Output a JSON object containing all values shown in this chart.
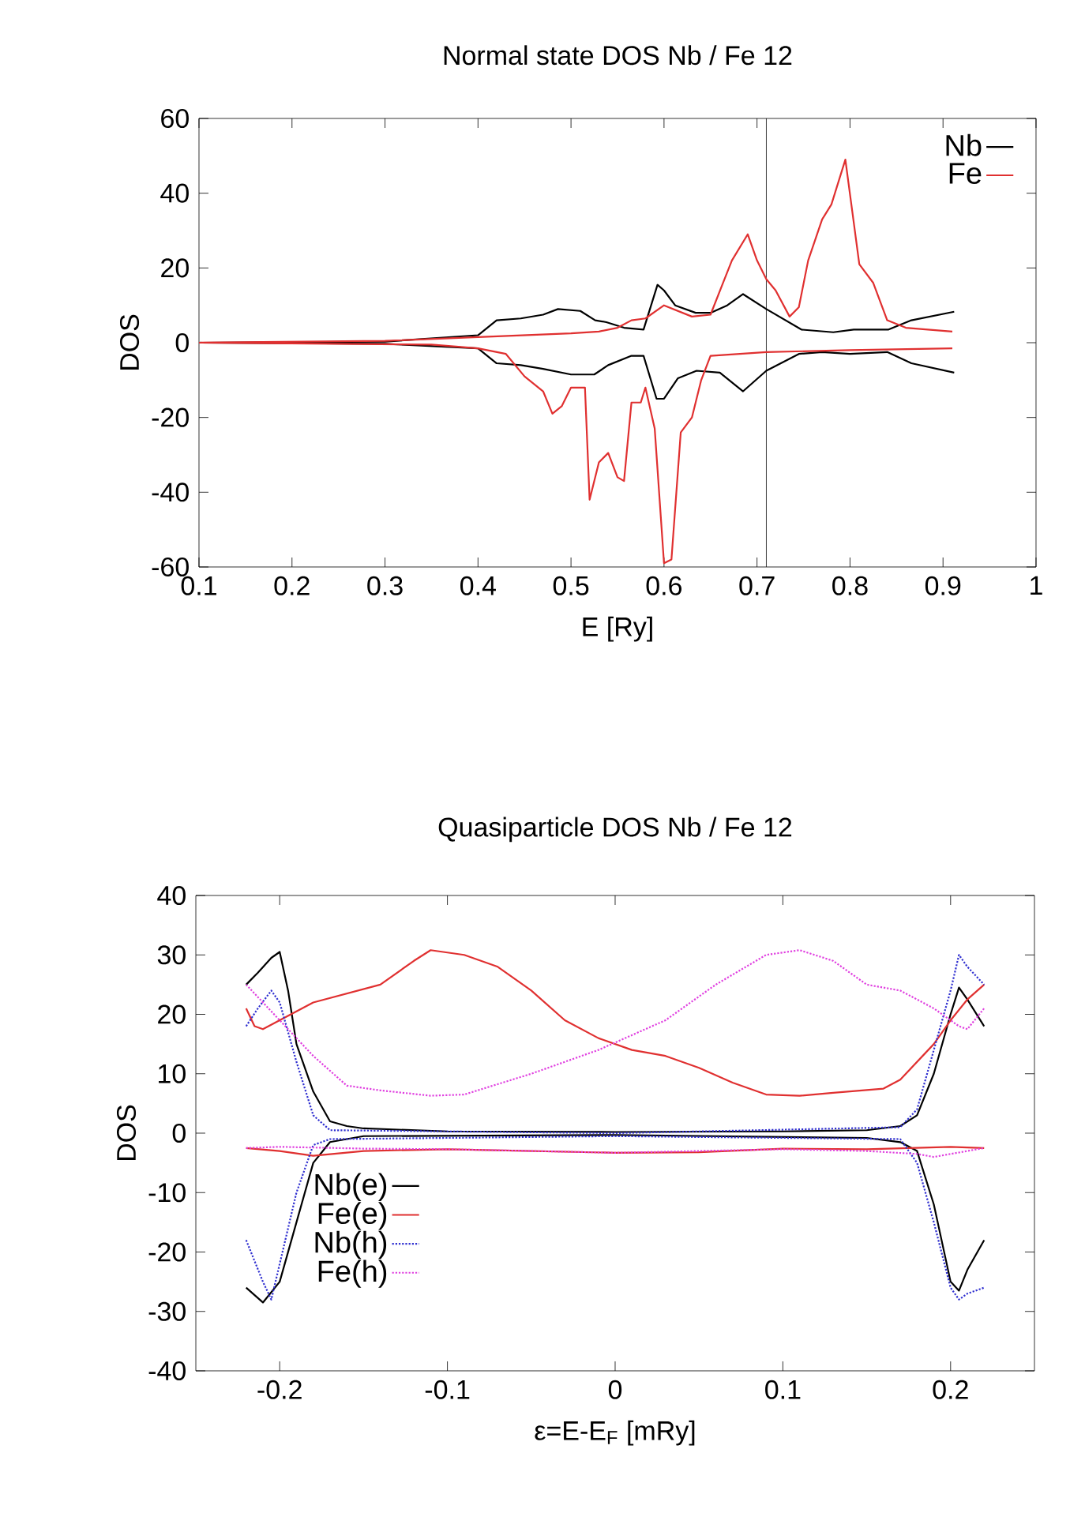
{
  "chart_data": [
    {
      "type": "line",
      "title": "Normal state DOS Nb / Fe 12",
      "xlabel": "E [Ry]",
      "ylabel": "DOS",
      "xlim": [
        0.1,
        1
      ],
      "ylim": [
        -60,
        60
      ],
      "xticks": [
        0.1,
        0.2,
        0.3,
        0.4,
        0.5,
        0.6,
        0.7,
        0.8,
        0.9,
        1
      ],
      "yticks": [
        -60,
        -40,
        -20,
        0,
        20,
        40,
        60
      ],
      "legend": "top right",
      "line_style": "solid",
      "ref_lines": [
        {
          "axis": "x",
          "value": 0.71,
          "color": "#000000"
        }
      ],
      "series": [
        {
          "name": "Nb",
          "color": "#000000",
          "x": [
            0.1,
            0.3,
            0.4,
            0.42,
            0.446,
            0.47,
            0.486,
            0.51,
            0.526,
            0.538,
            0.557,
            0.578,
            0.593,
            0.6,
            0.612,
            0.634,
            0.65,
            0.668,
            0.685,
            0.71,
            0.748,
            0.782,
            0.804,
            0.841,
            0.866,
            0.912
          ],
          "values": [
            0,
            0.3,
            2,
            6,
            6.5,
            7.5,
            9,
            8.5,
            6,
            5.5,
            4,
            3.5,
            15.5,
            14,
            10,
            8,
            8,
            10,
            13,
            9,
            3.5,
            2.8,
            3.5,
            3.5,
            6,
            8.3
          ]
        },
        {
          "color": "#000000",
          "x": [
            0.1,
            0.3,
            0.4,
            0.42,
            0.446,
            0.47,
            0.5,
            0.525,
            0.54,
            0.565,
            0.578,
            0.592,
            0.6,
            0.615,
            0.635,
            0.66,
            0.685,
            0.71,
            0.745,
            0.77,
            0.8,
            0.84,
            0.866,
            0.912
          ],
          "values": [
            0,
            -0.3,
            -1.5,
            -5.5,
            -6,
            -7,
            -8.5,
            -8.5,
            -6,
            -3.5,
            -3.5,
            -15,
            -15,
            -9.5,
            -7.5,
            -8,
            -13,
            -7.5,
            -3,
            -2.5,
            -3,
            -2.5,
            -5.5,
            -8
          ]
        },
        {
          "name": "Fe",
          "color": "#e03030",
          "x": [
            0.1,
            0.3,
            0.4,
            0.5,
            0.53,
            0.55,
            0.565,
            0.58,
            0.6,
            0.63,
            0.65,
            0.665,
            0.673,
            0.69,
            0.7,
            0.71,
            0.72,
            0.735,
            0.745,
            0.755,
            0.77,
            0.78,
            0.795,
            0.81,
            0.825,
            0.84,
            0.86,
            0.91
          ],
          "values": [
            0,
            0.5,
            1.5,
            2.5,
            3,
            4,
            6,
            6.5,
            10,
            7,
            7.5,
            17,
            22,
            29,
            22,
            17,
            14,
            7,
            9.5,
            22,
            33,
            37,
            49,
            21,
            16,
            6,
            4,
            3
          ]
        },
        {
          "color": "#e03030",
          "x": [
            0.1,
            0.35,
            0.4,
            0.43,
            0.45,
            0.47,
            0.48,
            0.49,
            0.5,
            0.515,
            0.52,
            0.53,
            0.54,
            0.55,
            0.557,
            0.565,
            0.575,
            0.58,
            0.59,
            0.6,
            0.608,
            0.618,
            0.63,
            0.64,
            0.65,
            0.71,
            0.8,
            0.91
          ],
          "values": [
            0,
            -0.5,
            -1.5,
            -3,
            -9,
            -13,
            -19,
            -17,
            -12,
            -12,
            -42,
            -32,
            -29.5,
            -36,
            -37,
            -16,
            -16,
            -12,
            -23,
            -59,
            -58,
            -24,
            -20,
            -10,
            -3.5,
            -2.5,
            -2,
            -1.5
          ]
        }
      ]
    },
    {
      "type": "line",
      "title": "Quasiparticle DOS Nb / Fe 12",
      "xlabel": "ε=E-E$_{F}$ [mRy]",
      "ylabel": "DOS",
      "xlim": [
        -0.25,
        0.25
      ],
      "ylim": [
        -40,
        40
      ],
      "xticks": [
        -0.2,
        -0.1,
        0,
        0.1,
        0.2
      ],
      "yticks": [
        -40,
        -30,
        -20,
        -10,
        0,
        10,
        20,
        30,
        40
      ],
      "legend": "bottom left",
      "series": [
        {
          "name": "Nb(e)",
          "color": "#000000",
          "line_style": "solid",
          "x": [
            -0.22,
            -0.213,
            -0.205,
            -0.2,
            -0.195,
            -0.19,
            -0.18,
            -0.17,
            -0.16,
            -0.15,
            -0.1,
            0,
            0.1,
            0.15,
            0.17,
            0.18,
            0.19,
            0.2,
            0.205,
            0.21,
            0.22
          ],
          "values": [
            25,
            27,
            29.5,
            30.5,
            24,
            15,
            7,
            2,
            1.2,
            0.8,
            0.3,
            0.2,
            0.3,
            0.5,
            1.2,
            3,
            10,
            20,
            24.5,
            22.5,
            18
          ]
        },
        {
          "color": "#000000",
          "line_style": "solid",
          "x": [
            -0.22,
            -0.21,
            -0.2,
            -0.19,
            -0.18,
            -0.17,
            -0.15,
            0,
            0.15,
            0.17,
            0.18,
            0.19,
            0.2,
            0.205,
            0.21,
            0.22
          ],
          "values": [
            -26,
            -28.5,
            -25,
            -15,
            -5,
            -1.5,
            -0.5,
            -0.3,
            -0.8,
            -1.5,
            -3,
            -12,
            -25,
            -26.5,
            -23,
            -18
          ]
        },
        {
          "name": "Fe(e)",
          "color": "#e03030",
          "line_style": "solid",
          "x": [
            -0.22,
            -0.215,
            -0.21,
            -0.2,
            -0.18,
            -0.16,
            -0.14,
            -0.12,
            -0.11,
            -0.09,
            -0.07,
            -0.05,
            -0.03,
            -0.01,
            0.01,
            0.03,
            0.05,
            0.07,
            0.09,
            0.11,
            0.13,
            0.16,
            0.17,
            0.19,
            0.2,
            0.21,
            0.22
          ],
          "values": [
            21,
            18,
            17.5,
            19,
            22,
            23.5,
            25,
            29,
            30.8,
            30,
            28,
            24,
            19,
            16,
            14,
            13,
            11,
            8.5,
            6.5,
            6.3,
            6.8,
            7.5,
            9,
            15,
            19,
            22.5,
            25
          ]
        },
        {
          "color": "#e03030",
          "line_style": "solid",
          "x": [
            -0.22,
            -0.2,
            -0.18,
            -0.15,
            -0.1,
            0,
            0.05,
            0.1,
            0.15,
            0.2,
            0.22
          ],
          "values": [
            -2.5,
            -3,
            -3.8,
            -3,
            -2.7,
            -3.3,
            -3.2,
            -2.6,
            -2.7,
            -2.3,
            -2.5
          ]
        },
        {
          "name": "Nb(h)",
          "color": "#3030d0",
          "line_style": "dotted",
          "x": [
            -0.22,
            -0.213,
            -0.205,
            -0.2,
            -0.19,
            -0.18,
            -0.17,
            0,
            0.17,
            0.18,
            0.19,
            0.2,
            0.205,
            0.21,
            0.22
          ],
          "values": [
            18,
            21,
            24,
            22,
            12,
            3,
            0.5,
            0,
            1,
            4,
            14,
            24,
            30,
            28,
            25
          ]
        },
        {
          "color": "#3030d0",
          "line_style": "dotted",
          "x": [
            -0.22,
            -0.21,
            -0.205,
            -0.2,
            -0.19,
            -0.18,
            -0.17,
            0,
            0.17,
            0.18,
            0.19,
            0.2,
            0.205,
            0.21,
            0.22
          ],
          "values": [
            -18,
            -25,
            -28,
            -22,
            -10,
            -2,
            -1,
            -0.5,
            -1,
            -5,
            -15,
            -26,
            -28,
            -27,
            -26
          ]
        },
        {
          "name": "Fe(h)",
          "color": "#e040e0",
          "line_style": "dotted",
          "x": [
            -0.22,
            -0.21,
            -0.2,
            -0.18,
            -0.16,
            -0.14,
            -0.11,
            -0.09,
            -0.05,
            -0.01,
            0.03,
            0.06,
            0.09,
            0.11,
            0.13,
            0.15,
            0.17,
            0.19,
            0.205,
            0.21,
            0.22
          ],
          "values": [
            25,
            22,
            19,
            13,
            8,
            7.2,
            6.3,
            6.5,
            10,
            14,
            19,
            25,
            30,
            30.8,
            29,
            25,
            24,
            21,
            18,
            17.5,
            21
          ]
        },
        {
          "color": "#e040e0",
          "line_style": "dotted",
          "x": [
            -0.22,
            -0.2,
            -0.15,
            -0.1,
            0,
            0.1,
            0.15,
            0.18,
            0.19,
            0.2,
            0.22
          ],
          "values": [
            -2.5,
            -2.3,
            -2.6,
            -2.7,
            -3.3,
            -2.7,
            -3,
            -3.5,
            -4,
            -3.5,
            -2.5
          ]
        }
      ]
    }
  ]
}
